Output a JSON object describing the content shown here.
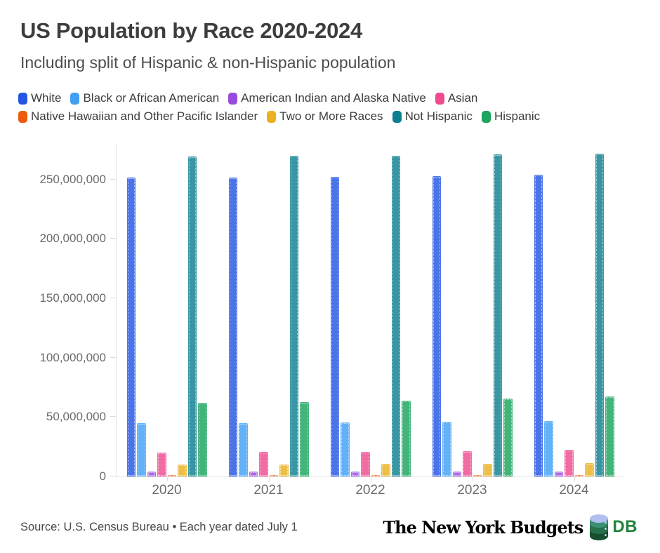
{
  "chart_data": {
    "type": "bar",
    "title": "US Population by Race 2020-2024",
    "subtitle": "Including split of Hispanic & non-Hispanic population",
    "xlabel": "",
    "ylabel": "",
    "x": [
      "2020",
      "2021",
      "2022",
      "2023",
      "2024"
    ],
    "ylim": [
      0,
      280000000
    ],
    "grid": false,
    "legend_position": "top",
    "legend_row_split": 4,
    "yticks": [
      {
        "value": 0,
        "label": "0"
      },
      {
        "value": 50000000,
        "label": "50,000,000"
      },
      {
        "value": 100000000,
        "label": "100,000,000"
      },
      {
        "value": 150000000,
        "label": "150,000,000"
      },
      {
        "value": 200000000,
        "label": "200,000,000"
      },
      {
        "value": 250000000,
        "label": "250,000,000"
      }
    ],
    "series": [
      {
        "name": "White",
        "color": "#2456E3",
        "values": [
          251600000,
          251800000,
          252200000,
          253000000,
          254300000
        ]
      },
      {
        "name": "Black or African American",
        "color": "#41A0F5",
        "values": [
          44900000,
          45100000,
          45400000,
          45900000,
          46400000
        ]
      },
      {
        "name": "American Indian and Alaska Native",
        "color": "#9A4BDF",
        "values": [
          4100000,
          4200000,
          4200000,
          4300000,
          4400000
        ]
      },
      {
        "name": "Asian",
        "color": "#EF4C90",
        "values": [
          20100000,
          20500000,
          20900000,
          21500000,
          22200000
        ]
      },
      {
        "name": "Native Hawaiian and Other Pacific Islander",
        "color": "#F05A0E",
        "values": [
          900000,
          900000,
          900000,
          900000,
          950000
        ]
      },
      {
        "name": "Two or More Races",
        "color": "#EAB121",
        "values": [
          10000000,
          10200000,
          10400000,
          10700000,
          11000000
        ]
      },
      {
        "name": "Not Hispanic",
        "color": "#0E7F8F",
        "values": [
          269500000,
          269700000,
          270100000,
          270900000,
          272000000
        ]
      },
      {
        "name": "Hispanic",
        "color": "#1BA55E",
        "values": [
          62100000,
          62900000,
          64000000,
          65500000,
          67500000
        ]
      }
    ]
  },
  "footer": {
    "source": "Source: U.S. Census Bureau • Each year dated July 1",
    "logo_text": "The New York Budgets",
    "logo_db": "DB"
  },
  "ui_colors": {
    "title_text": "#3d3d3d",
    "subtitle_text": "#4d4d4d",
    "axis_label_text": "#6b6b6b",
    "axis_line": "#e4e4e4",
    "logo_db_green": "#21853b"
  }
}
